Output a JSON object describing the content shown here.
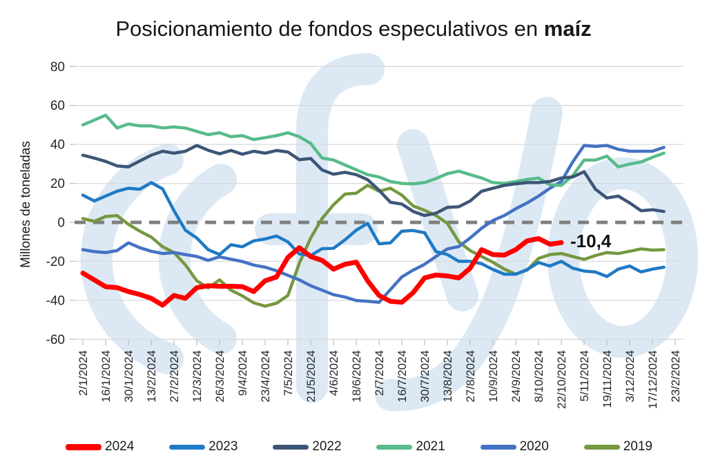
{
  "chart_data": {
    "type": "line",
    "title": "Posicionamiento de fondos especulativos en maíz",
    "title_parts": {
      "regular": "Posicionamiento de fondos especulativos en ",
      "bold": "maíz"
    },
    "ylabel": "Millones de toneladas",
    "ylim": [
      -60,
      80
    ],
    "yticks": [
      80,
      60,
      40,
      20,
      0,
      -20,
      -40,
      -60
    ],
    "grid": "horizontal",
    "legend_position": "bottom",
    "zero_line": {
      "style": "dashed",
      "color": "#7F7F7F"
    },
    "watermark": {
      "text": "fyo",
      "color": "#DCE9F4"
    },
    "annotation": {
      "text": "-10,4",
      "value": -10.4,
      "series": "2024",
      "at_label": "22/10/2024"
    },
    "x_tick_labels": [
      "2/1/2024",
      "16/1/2024",
      "30/1/2024",
      "13/2/2024",
      "27/2/2024",
      "12/3/2024",
      "26/3/2024",
      "9/4/2024",
      "23/4/2024",
      "7/5/2024",
      "21/5/2024",
      "4/6/2024",
      "18/6/2024",
      "2/7/2024",
      "16/7/2024",
      "30/7/2024",
      "13/8/2024",
      "27/8/2024",
      "10/9/2024",
      "24/9/2024",
      "8/10/2024",
      "22/10/2024",
      "5/11/2024",
      "19/11/2024",
      "3/12/2024",
      "17/12/2024",
      "23/2/2024"
    ],
    "points_per_label_interval": 2,
    "x_unit": "weekly",
    "series": [
      {
        "name": "2024",
        "color": "#FF0000",
        "line_width": 7,
        "values": [
          -26,
          -29.5,
          -33,
          -33.5,
          -35.5,
          -37,
          -39,
          -42.5,
          -37.5,
          -39,
          -33.5,
          -32.5,
          -32.8,
          -32.8,
          -33,
          -35.5,
          -30,
          -28,
          -18,
          -13,
          -17.5,
          -19.5,
          -24,
          -21.5,
          -20.4,
          -30,
          -37.5,
          -40.5,
          -41,
          -36,
          -28.5,
          -27,
          -27.5,
          -28.5,
          -23.5,
          -14,
          -16.5,
          -16.8,
          -14,
          -9.5,
          -8.3,
          -11.2,
          -10.4
        ]
      },
      {
        "name": "2023",
        "color": "#1F7AC5",
        "line_width": 4.5,
        "values": [
          14,
          11,
          13.5,
          16,
          17.5,
          17,
          20.4,
          17.2,
          6,
          -4,
          -8,
          -14,
          -16.5,
          -11.5,
          -12.5,
          -9.5,
          -8.5,
          -7,
          -10,
          -16.2,
          -17,
          -13.5,
          -13.3,
          -9,
          -4,
          -0.5,
          -11,
          -10.5,
          -4.5,
          -4.2,
          -5.3,
          -15,
          -16.5,
          -20,
          -20,
          -21.2,
          -24.2,
          -26.6,
          -26.6,
          -24.2,
          -20.6,
          -22.4,
          -20,
          -23.5,
          -25,
          -25.5,
          -27.8,
          -24,
          -22.4,
          -25.4,
          -24,
          -23
        ]
      },
      {
        "name": "2022",
        "color": "#3D5677",
        "line_width": 4.5,
        "values": [
          34.5,
          33,
          31.3,
          29,
          28.5,
          31.5,
          34.5,
          36.5,
          35.5,
          36.5,
          39.5,
          37,
          35.2,
          36.9,
          35,
          36.5,
          35.5,
          36.9,
          36.1,
          32.2,
          32.8,
          26.9,
          24.7,
          25.7,
          24.5,
          21.9,
          16.5,
          10.3,
          9.4,
          5.6,
          3.5,
          4.7,
          7.7,
          8,
          11,
          16,
          17.5,
          19,
          19.8,
          20.4,
          20.4,
          21,
          22.8,
          23.3,
          26,
          17,
          12.5,
          13.5,
          10,
          6,
          6.5,
          5.6
        ]
      },
      {
        "name": "2021",
        "color": "#57BB8A",
        "line_width": 4.5,
        "values": [
          50,
          52.5,
          55,
          48.5,
          50.5,
          49.5,
          49.5,
          48.5,
          49,
          48.4,
          46.7,
          45,
          46,
          44,
          44.5,
          42.5,
          43.5,
          44.5,
          46,
          44,
          40.5,
          33,
          32,
          29.5,
          27,
          24.5,
          23.3,
          21,
          20,
          19.8,
          20.4,
          22.5,
          25,
          26.3,
          24.5,
          22.8,
          20.4,
          20,
          21,
          22,
          22.8,
          19.2,
          19,
          24,
          32,
          32,
          34,
          28.5,
          29.9,
          31,
          33.4,
          35.5
        ]
      },
      {
        "name": "2020",
        "color": "#4472C4",
        "line_width": 4.5,
        "values": [
          -14,
          -15,
          -15.5,
          -14.5,
          -10.5,
          -13,
          -14.8,
          -16,
          -15.5,
          -16.5,
          -17.5,
          -19.5,
          -17.7,
          -18.9,
          -20.1,
          -21.9,
          -23,
          -24.8,
          -27.2,
          -29.5,
          -32.5,
          -34.8,
          -37.1,
          -38.3,
          -40.1,
          -40.5,
          -41,
          -34.5,
          -28,
          -24.5,
          -21.5,
          -17.5,
          -13.6,
          -12.4,
          -8,
          -3,
          1,
          3.5,
          7,
          10,
          13.5,
          17.5,
          21,
          31,
          39.5,
          39,
          39.5,
          37.5,
          36.5,
          36.5,
          36.5,
          38.5
        ]
      },
      {
        "name": "2019",
        "color": "#76983F",
        "line_width": 4.5,
        "values": [
          2,
          0.5,
          3,
          3.5,
          -1,
          -4.5,
          -7.5,
          -12.5,
          -15.5,
          -21.8,
          -30,
          -33.6,
          -29.5,
          -34.8,
          -37.7,
          -41.3,
          -43,
          -41.5,
          -37.5,
          -21,
          -8,
          2,
          9,
          14.5,
          15,
          19,
          16,
          17.5,
          14,
          8.4,
          6.2,
          3.5,
          -0.5,
          -10,
          -14.5,
          -17.5,
          -20.5,
          -24,
          -26.6,
          -24.5,
          -18.5,
          -16.5,
          -16,
          -17.5,
          -19,
          -17,
          -15.5,
          -16,
          -14.8,
          -13.6,
          -14.2,
          -14
        ]
      }
    ]
  }
}
